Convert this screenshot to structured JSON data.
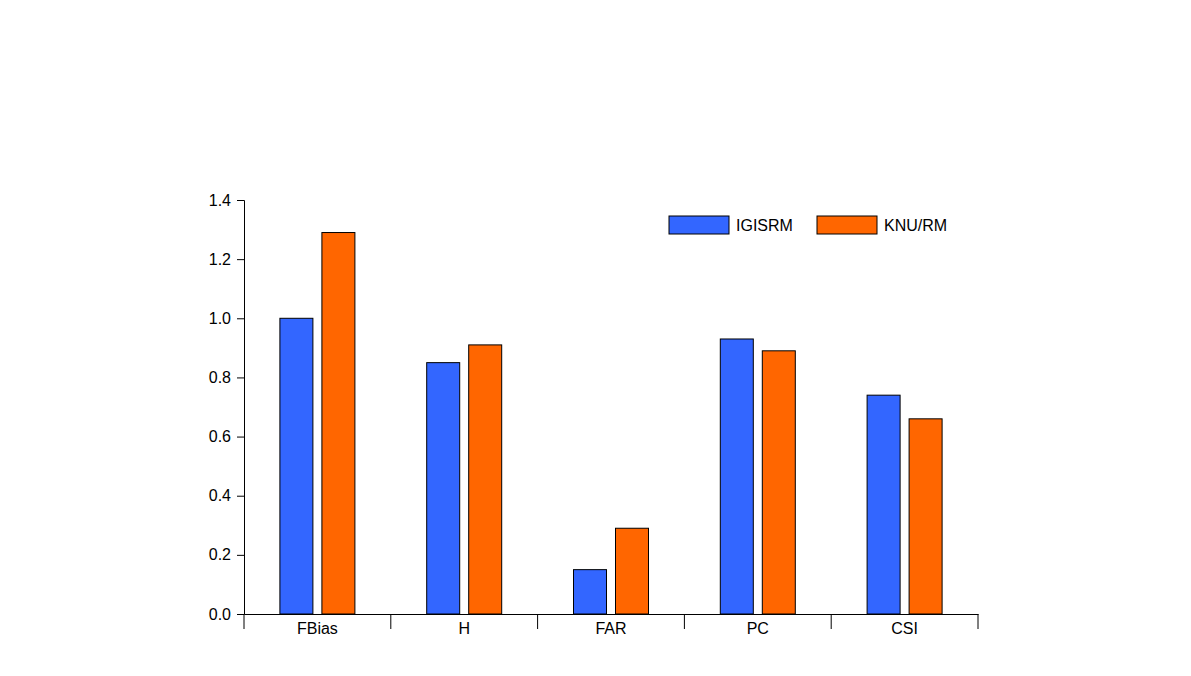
{
  "chart_data": {
    "type": "bar",
    "categories": [
      "FBias",
      "H",
      "FAR",
      "PC",
      "CSI"
    ],
    "series": [
      {
        "name": "IGISRM",
        "color": "#3366ff",
        "values": [
          1.0,
          0.85,
          0.15,
          0.93,
          0.74
        ]
      },
      {
        "name": "KNU/RM",
        "color": "#ff6600",
        "values": [
          1.29,
          0.91,
          0.29,
          0.89,
          0.66
        ]
      }
    ],
    "ylim": [
      0,
      1.4
    ],
    "yticks": [
      {
        "value": 0,
        "label": "0.0"
      },
      0.2,
      0.4,
      0.6,
      0.8,
      {
        "value": 1,
        "label": "1.0"
      },
      1.2,
      1.4
    ],
    "grid": false,
    "legend": "upper right"
  }
}
